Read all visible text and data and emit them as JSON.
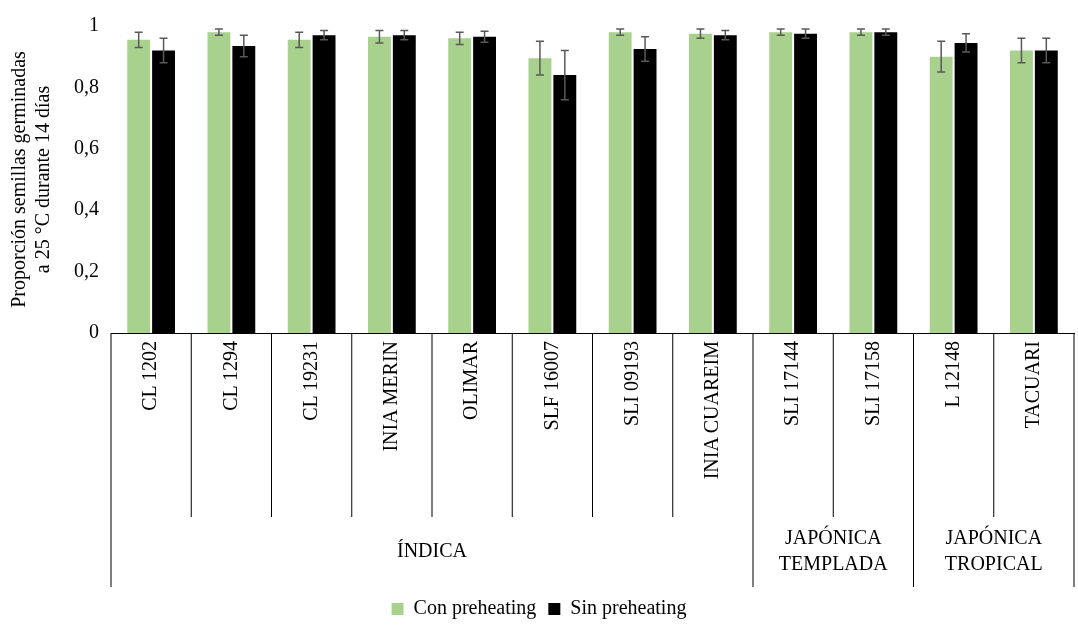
{
  "chart_data": {
    "type": "bar",
    "ylabel": "Proporción semillas germinadas\na 25 °C durante 14 días",
    "categories": [
      "CL 1202",
      "CL 1294",
      "CL 19231",
      "INIA MERIN",
      "OLIMAR",
      "SLF 16007",
      "SLI 09193",
      "INIA CUAREIM",
      "SLI 17144",
      "SLI 17158",
      "L 12148",
      "TACUARI"
    ],
    "series": [
      {
        "name": "Con preheating",
        "color": "#a9d18e",
        "values": [
          0.955,
          0.98,
          0.955,
          0.965,
          0.96,
          0.895,
          0.98,
          0.975,
          0.98,
          0.98,
          0.9,
          0.92
        ],
        "errors": [
          0.025,
          0.01,
          0.025,
          0.02,
          0.02,
          0.055,
          0.01,
          0.015,
          0.01,
          0.01,
          0.05,
          0.04
        ]
      },
      {
        "name": "Sin preheating",
        "color": "#000000",
        "values": [
          0.92,
          0.935,
          0.97,
          0.97,
          0.965,
          0.84,
          0.925,
          0.97,
          0.975,
          0.98,
          0.945,
          0.92
        ],
        "errors": [
          0.04,
          0.035,
          0.015,
          0.015,
          0.018,
          0.08,
          0.04,
          0.015,
          0.015,
          0.01,
          0.03,
          0.04
        ]
      }
    ],
    "ylim": [
      0,
      1
    ],
    "yticks": [
      0,
      {
        "value": 0.2,
        "label": "0,2"
      },
      {
        "value": 0.4,
        "label": "0,4"
      },
      {
        "value": 0.6,
        "label": "0,6"
      },
      {
        "value": 0.8,
        "label": "0,8"
      },
      1
    ],
    "annotations": [
      "ÍNDICA",
      "JAPÓNICA TEMPLADA",
      "JAPÓNICA TROPICAL"
    ],
    "grid": false,
    "legend": "bottom"
  }
}
